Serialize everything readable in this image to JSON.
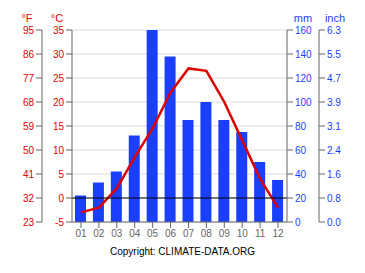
{
  "chart_data": {
    "type": "bar",
    "categories": [
      "01",
      "02",
      "03",
      "04",
      "05",
      "06",
      "07",
      "08",
      "09",
      "10",
      "11",
      "12"
    ],
    "series": [
      {
        "type": "bar",
        "color": "#1a3fff",
        "values": [
          22,
          33,
          42,
          72,
          160,
          138,
          85,
          100,
          85,
          75,
          50,
          35
        ]
      },
      {
        "type": "line",
        "axis": "y2",
        "color": "#dd0000",
        "values": [
          -3.0,
          -2.0,
          2.0,
          8.5,
          14.5,
          22.0,
          27.0,
          26.5,
          20.0,
          12.0,
          4.0,
          -2.0
        ]
      }
    ],
    "ylabel": "mm",
    "ylim": [
      0,
      160
    ],
    "yticks": [
      0,
      20,
      40,
      60,
      80,
      100,
      120,
      140,
      160
    ],
    "y2label": "°C",
    "y2lim": [
      -5,
      35
    ],
    "y2ticks": [
      -5,
      0,
      5,
      10,
      15,
      20,
      25,
      30,
      35
    ],
    "y3label": "°F",
    "y3lim": [
      -5,
      35
    ],
    "y3ticks": [
      {
        "value": -5,
        "label": "23"
      },
      {
        "value": 0,
        "label": "32"
      },
      {
        "value": 5,
        "label": "41"
      },
      {
        "value": 10,
        "label": "50"
      },
      {
        "value": 15,
        "label": "59"
      },
      {
        "value": 20,
        "label": "68"
      },
      {
        "value": 25,
        "label": "77"
      },
      {
        "value": 30,
        "label": "86"
      },
      {
        "value": 35,
        "label": "95"
      }
    ],
    "y4label": "inch",
    "y4lim": [
      0,
      160
    ],
    "y4ticks": [
      {
        "value": 0,
        "label": "0.0"
      },
      {
        "value": 20,
        "label": "0.8"
      },
      {
        "value": 40,
        "label": "1.6"
      },
      {
        "value": 60,
        "label": "2.4"
      },
      {
        "value": 80,
        "label": "3.1"
      },
      {
        "value": 100,
        "label": "3.9"
      },
      {
        "value": 120,
        "label": "4.7"
      },
      {
        "value": 140,
        "label": "5.5"
      },
      {
        "value": 160,
        "label": "6.3"
      }
    ],
    "reference_lines": [
      {
        "axis": "y2",
        "value": 0,
        "color": "black"
      }
    ],
    "grid": true,
    "annotation": "Copyright: CLIMATE-DATA.ORG"
  }
}
